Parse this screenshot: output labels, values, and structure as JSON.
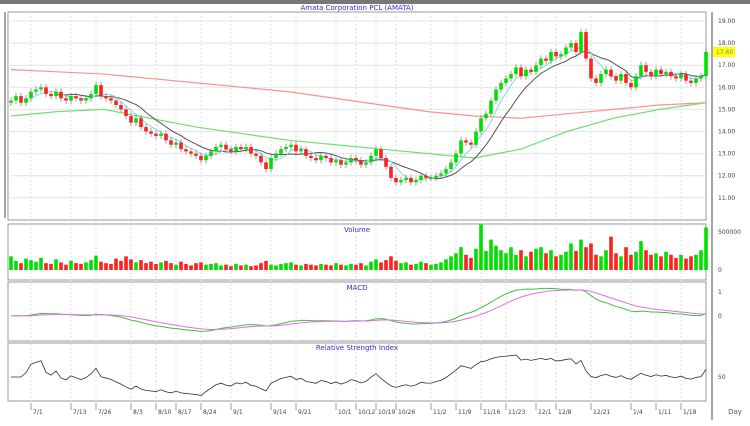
{
  "chart_data": [
    {
      "type": "candlestick",
      "title": "Amata Corporation PCL (AMATA)",
      "ylim": [
        10.5,
        19.5
      ],
      "yticks": [
        "19.00",
        "18.00",
        "17.00",
        "16.00",
        "15.00",
        "14.00",
        "13.00",
        "12.00",
        "11.00"
      ],
      "last_price": "17.60",
      "closes": [
        15.4,
        15.6,
        15.3,
        15.5,
        15.8,
        15.9,
        16.0,
        15.7,
        15.6,
        15.8,
        15.5,
        15.4,
        15.6,
        15.5,
        15.4,
        15.5,
        15.7,
        16.1,
        15.6,
        15.5,
        15.4,
        15.2,
        15.0,
        14.7,
        14.4,
        14.6,
        14.2,
        14.0,
        13.9,
        13.8,
        13.9,
        13.6,
        13.4,
        13.5,
        13.2,
        13.1,
        13.0,
        12.9,
        12.7,
        12.9,
        13.1,
        13.3,
        13.4,
        13.2,
        13.1,
        13.3,
        13.2,
        13.3,
        13.0,
        12.9,
        12.6,
        12.3,
        12.8,
        13.0,
        13.2,
        13.3,
        13.4,
        13.1,
        13.2,
        12.9,
        12.8,
        12.7,
        12.9,
        12.8,
        12.6,
        12.7,
        12.5,
        12.6,
        12.8,
        12.7,
        12.5,
        12.6,
        12.9,
        13.2,
        12.8,
        12.4,
        11.9,
        11.7,
        11.8,
        11.9,
        11.7,
        11.8,
        12.0,
        11.9,
        11.9,
        12.0,
        12.1,
        12.3,
        12.6,
        13.0,
        13.6,
        13.5,
        13.4,
        14.0,
        14.6,
        14.8,
        15.4,
        15.9,
        16.2,
        16.4,
        16.6,
        16.9,
        16.5,
        16.8,
        16.7,
        17.0,
        17.3,
        17.2,
        17.6,
        17.4,
        17.5,
        17.8,
        18.0,
        17.6,
        18.5,
        17.3,
        16.4,
        16.2,
        16.6,
        16.8,
        16.5,
        16.3,
        16.6,
        16.2,
        16.0,
        16.5,
        17.0,
        16.7,
        16.5,
        16.8,
        16.6,
        16.7,
        16.5,
        16.4,
        16.6,
        16.3,
        16.2,
        16.4,
        16.5,
        17.6
      ],
      "ma_long_red": [
        16.8,
        16.7,
        16.6,
        16.4,
        16.2,
        16.0,
        15.8,
        15.5,
        15.2,
        14.9,
        14.7,
        14.6,
        14.8,
        15.0,
        15.2,
        15.3
      ],
      "ma_long_green": [
        14.7,
        14.9,
        15.0,
        14.6,
        14.2,
        13.9,
        13.6,
        13.4,
        13.2,
        13.0,
        12.8,
        13.2,
        14.0,
        14.6,
        15.0,
        15.3
      ],
      "colors": {
        "up": "#00e000",
        "down": "#ff2020",
        "ma_red": "#ff9090",
        "ma_green": "#70e070",
        "ma_short": "#505050",
        "ma_fast": "#80d8e8"
      }
    },
    {
      "type": "bar",
      "title": "Volume",
      "yticks": [
        "500000",
        "0"
      ],
      "values": [
        180000,
        120000,
        90000,
        150000,
        130000,
        110000,
        160000,
        90000,
        80000,
        140000,
        100000,
        70000,
        120000,
        90000,
        80000,
        100000,
        130000,
        190000,
        110000,
        90000,
        80000,
        150000,
        120000,
        180000,
        140000,
        100000,
        130000,
        90000,
        110000,
        80000,
        100000,
        120000,
        90000,
        70000,
        110000,
        80000,
        60000,
        90000,
        100000,
        70000,
        80000,
        90000,
        60000,
        70000,
        50000,
        80000,
        60000,
        70000,
        50000,
        60000,
        90000,
        120000,
        70000,
        60000,
        80000,
        90000,
        100000,
        70000,
        60000,
        80000,
        70000,
        60000,
        80000,
        70000,
        60000,
        90000,
        70000,
        60000,
        80000,
        70000,
        90000,
        60000,
        110000,
        140000,
        100000,
        130000,
        180000,
        120000,
        90000,
        100000,
        70000,
        80000,
        110000,
        90000,
        70000,
        80000,
        100000,
        140000,
        180000,
        220000,
        300000,
        200000,
        160000,
        280000,
        600000,
        250000,
        400000,
        320000,
        260000,
        220000,
        300000,
        200000,
        260000,
        180000,
        240000,
        280000,
        300000,
        220000,
        260000,
        180000,
        200000,
        240000,
        350000,
        250000,
        400000,
        300000,
        350000,
        200000,
        180000,
        260000,
        440000,
        220000,
        180000,
        300000,
        200000,
        240000,
        380000,
        260000,
        200000,
        220000,
        180000,
        240000,
        200000,
        160000,
        200000,
        150000,
        180000,
        200000,
        260000,
        560000
      ]
    },
    {
      "type": "line",
      "title": "MACD",
      "yticks": [
        "1",
        "0"
      ],
      "colors": {
        "macd": "#40c040",
        "signal": "#e070e0"
      }
    },
    {
      "type": "line",
      "title": "Relative Strength Index",
      "yticks": [
        "50"
      ],
      "colors": {
        "rsi": "#303030"
      }
    }
  ],
  "x_axis": {
    "unit": "Day",
    "ticks": [
      {
        "label": "7/1",
        "i": 4
      },
      {
        "label": "7/13",
        "i": 12
      },
      {
        "label": "7/26",
        "i": 17
      },
      {
        "label": "8/3",
        "i": 24
      },
      {
        "label": "8/10",
        "i": 29
      },
      {
        "label": "8/17",
        "i": 33
      },
      {
        "label": "8/24",
        "i": 38
      },
      {
        "label": "9/1",
        "i": 44
      },
      {
        "label": "9/14",
        "i": 52
      },
      {
        "label": "9/21",
        "i": 57
      },
      {
        "label": "10/1",
        "i": 65
      },
      {
        "label": "10/12",
        "i": 69
      },
      {
        "label": "10/19",
        "i": 73
      },
      {
        "label": "10/26",
        "i": 77
      },
      {
        "label": "11/2",
        "i": 84
      },
      {
        "label": "11/9",
        "i": 89
      },
      {
        "label": "11/16",
        "i": 94
      },
      {
        "label": "11/23",
        "i": 99
      },
      {
        "label": "12/1",
        "i": 105
      },
      {
        "label": "12/8",
        "i": 109
      },
      {
        "label": "12/21",
        "i": 116
      },
      {
        "label": "1/4",
        "i": 124
      },
      {
        "label": "1/11",
        "i": 129
      },
      {
        "label": "1/18",
        "i": 134
      }
    ]
  }
}
